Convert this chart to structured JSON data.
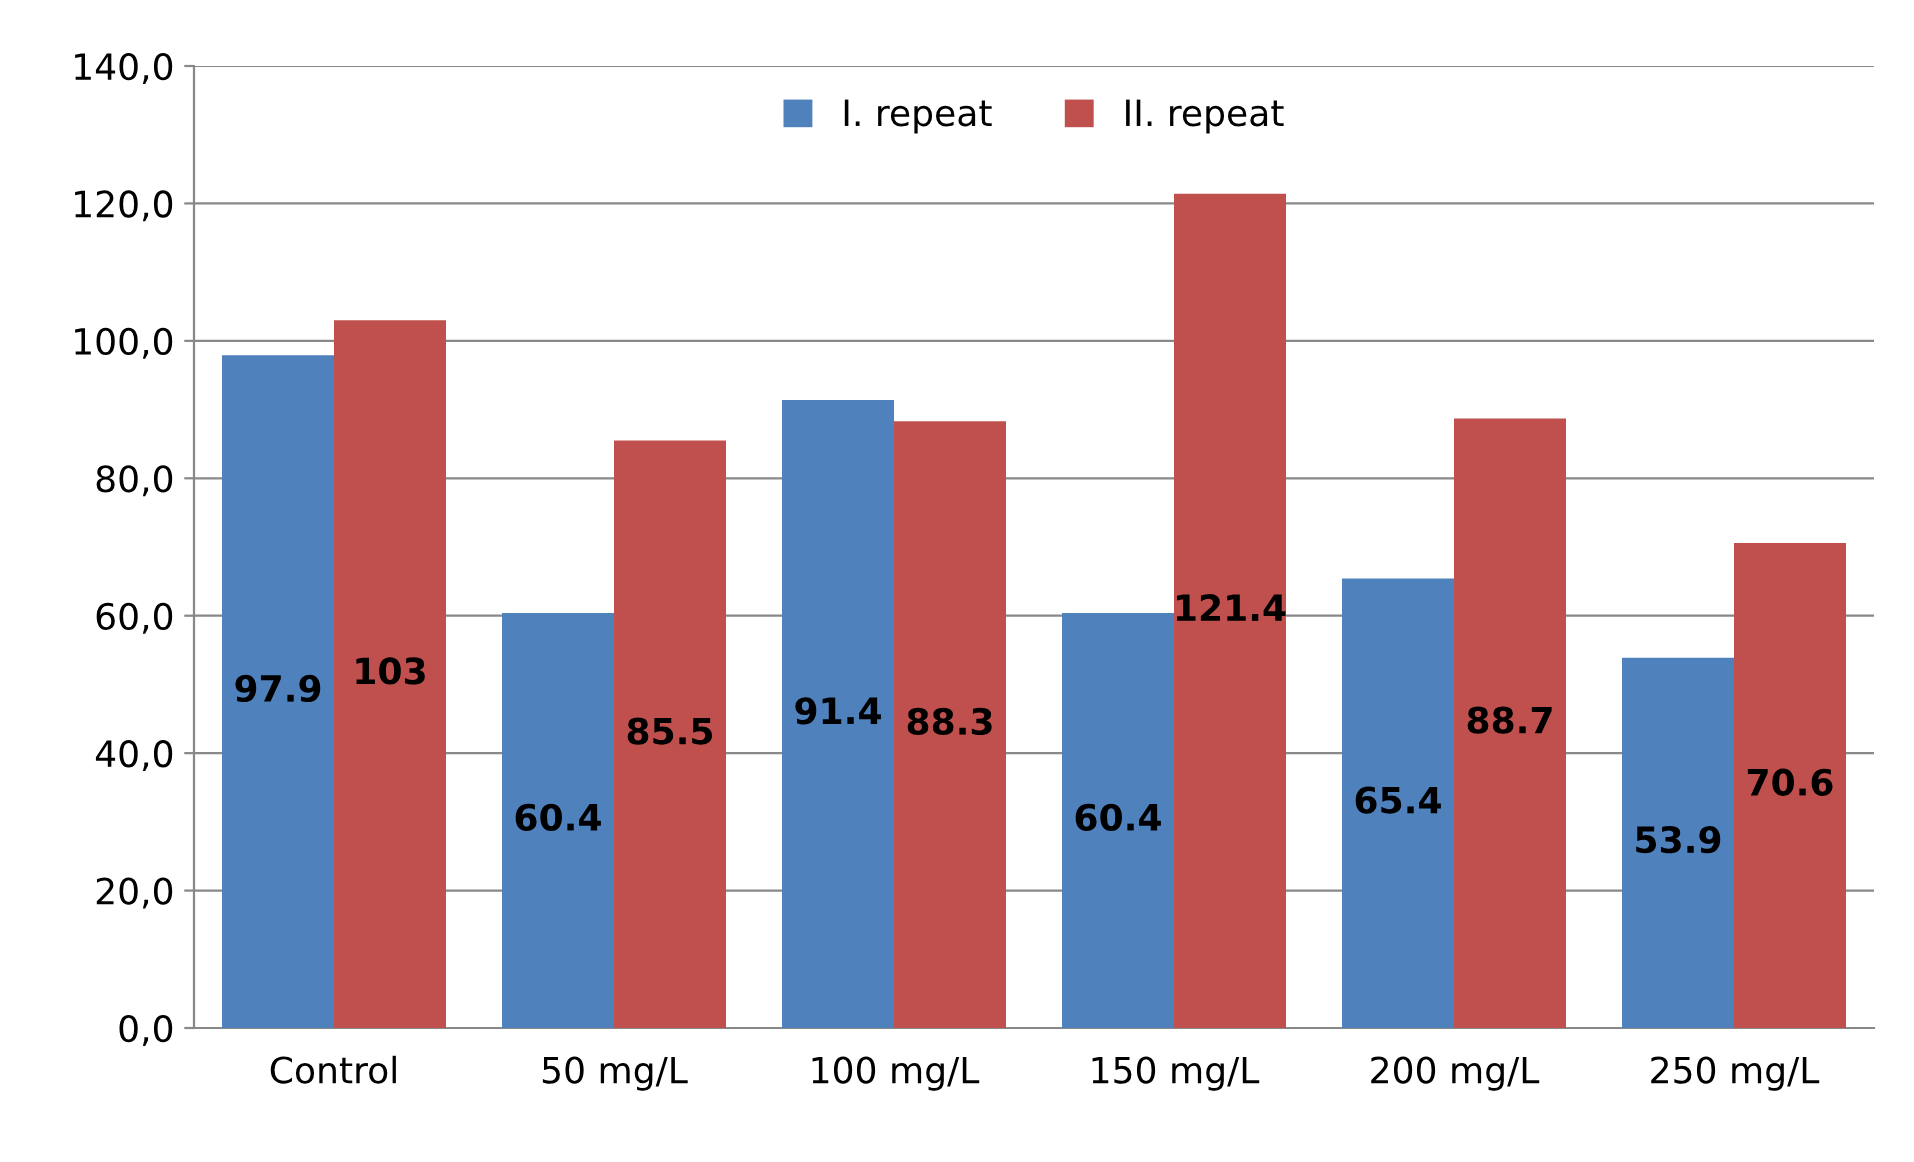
{
  "chart_data": {
    "type": "bar",
    "categories": [
      "Control",
      "50 mg/L",
      "100 mg/L",
      "150 mg/L",
      "200 mg/L",
      "250 mg/L"
    ],
    "series": [
      {
        "name": "I. repeat",
        "color": "#4f81bd",
        "values": [
          97.9,
          60.4,
          91.4,
          60.4,
          65.4,
          53.9
        ],
        "value_labels": [
          "97.9",
          "60.4",
          "91.4",
          "60.4",
          "65.4",
          "53.9"
        ]
      },
      {
        "name": "II. repeat",
        "color": "#c0504d",
        "values": [
          103,
          85.5,
          88.3,
          121.4,
          88.7,
          70.6
        ],
        "value_labels": [
          "103",
          "85.5",
          "88.3",
          "121.4",
          "88.7",
          "70.6"
        ]
      }
    ],
    "ylim": [
      0,
      140
    ],
    "yticks": [
      {
        "value": 0,
        "label": "0,0"
      },
      {
        "value": 20,
        "label": "20,0"
      },
      {
        "value": 40,
        "label": "40,0"
      },
      {
        "value": 60,
        "label": "60,0"
      },
      {
        "value": 80,
        "label": "80,0"
      },
      {
        "value": 100,
        "label": "100,0"
      },
      {
        "value": 120,
        "label": "120,0"
      },
      {
        "value": 140,
        "label": "140,0"
      }
    ],
    "grid": "y",
    "legend": "top"
  }
}
